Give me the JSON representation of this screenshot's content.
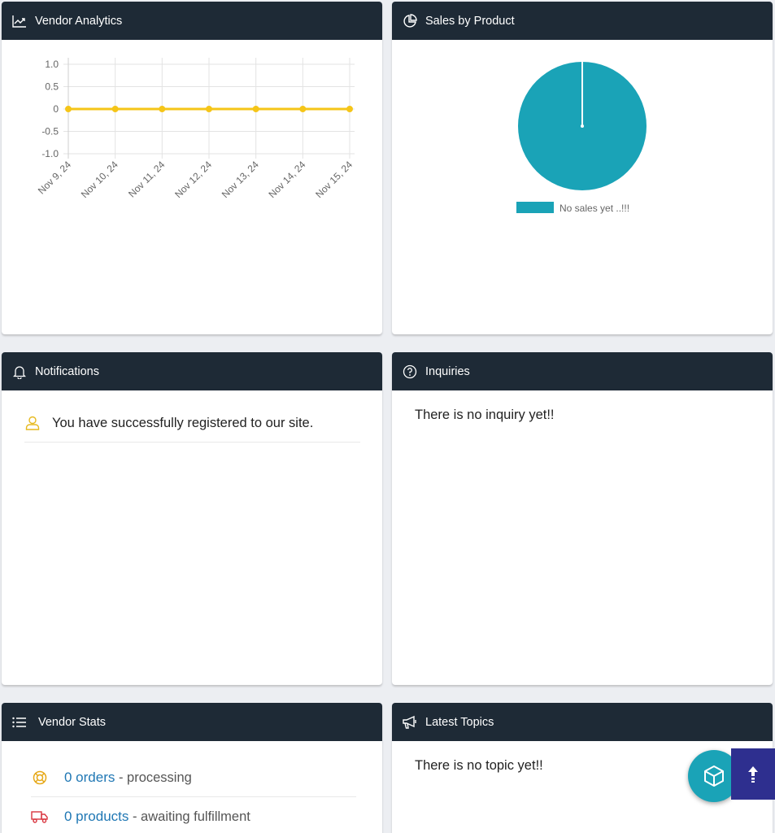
{
  "cards": {
    "vendor_analytics": {
      "title": "Vendor Analytics",
      "icon": "line-chart-icon"
    },
    "sales_by_product": {
      "title": "Sales by Product",
      "icon": "pie-chart-icon"
    },
    "notifications": {
      "title": "Notifications",
      "icon": "bell-icon"
    },
    "inquiries": {
      "title": "Inquiries",
      "icon": "question-circle-icon"
    },
    "vendor_stats": {
      "title": "Vendor Stats",
      "icon": "list-icon"
    },
    "latest_topics": {
      "title": "Latest Topics",
      "icon": "megaphone-icon"
    }
  },
  "notifications": {
    "items": [
      {
        "text": "You have successfully registered to our site.",
        "icon": "user-icon"
      }
    ]
  },
  "inquiries": {
    "empty_text": "There is no inquiry yet!!"
  },
  "latest_topics": {
    "empty_text": "There is no topic yet!!"
  },
  "vendor_stats": {
    "rows": [
      {
        "link": "0 orders",
        "desc": " - processing",
        "icon": "life-ring-icon",
        "icon_color": "#e6a817"
      },
      {
        "link": "0 products",
        "desc": " - awaiting fulfillment",
        "icon": "truck-icon",
        "icon_color": "#d9353f"
      }
    ]
  },
  "colors": {
    "header_bg": "#1e2a36",
    "line_series": "#f5c518",
    "pie_fill": "#1aa3b7",
    "fab_bg": "#1aa3b7",
    "scroll_top_bg": "#2e2f8f",
    "link": "#1f77b4"
  },
  "fab": {
    "icon": "cube-icon"
  },
  "scroll_top": {
    "icon": "arrow-up-icon"
  },
  "chart_data": [
    {
      "type": "line",
      "x": [
        "Nov 9, 24",
        "Nov 10, 24",
        "Nov 11, 24",
        "Nov 12, 24",
        "Nov 13, 24",
        "Nov 14, 24",
        "Nov 15, 24"
      ],
      "series": [
        {
          "values": [
            0,
            0,
            0,
            0,
            0,
            0,
            0
          ]
        }
      ],
      "ylim": [
        -1.0,
        1.0
      ],
      "yticks": [
        "1.0",
        "0.5",
        "0",
        "-0.5",
        "-1.0"
      ],
      "grid": true
    },
    {
      "type": "pie",
      "categories": [
        "No sales yet ..!!!"
      ],
      "values": [
        1
      ],
      "legend": "bottom"
    }
  ]
}
